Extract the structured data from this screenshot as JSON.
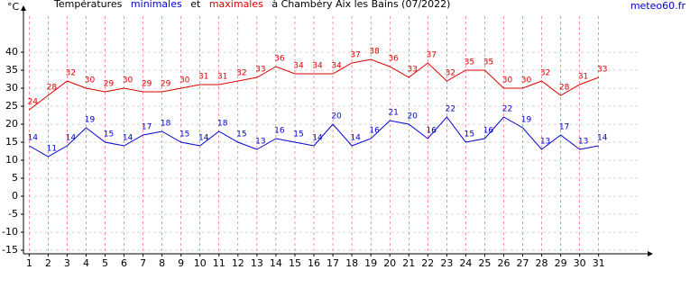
{
  "chart_data": {
    "type": "line",
    "title": {
      "prefix": "Températures",
      "joiner": "et",
      "suffix": "à Chambéry Aix les Bains (07/2022)"
    },
    "ylabel": "°C",
    "source": "meteo60.fr",
    "x": [
      1,
      2,
      3,
      4,
      5,
      6,
      7,
      8,
      9,
      10,
      11,
      12,
      13,
      14,
      15,
      16,
      17,
      18,
      19,
      20,
      21,
      22,
      23,
      24,
      25,
      26,
      27,
      28,
      29,
      30,
      31
    ],
    "series": [
      {
        "name": "minimales",
        "color": "#0000cc",
        "values": [
          14,
          11,
          14,
          19,
          15,
          14,
          17,
          18,
          15,
          14,
          18,
          15,
          13,
          16,
          15,
          14,
          20,
          14,
          16,
          21,
          20,
          16,
          22,
          15,
          16,
          22,
          19,
          13,
          17,
          13,
          14
        ]
      },
      {
        "name": "maximales",
        "color": "#dd0000",
        "values": [
          24,
          28,
          32,
          30,
          29,
          30,
          29,
          29,
          30,
          31,
          31,
          32,
          33,
          36,
          34,
          34,
          34,
          37,
          38,
          36,
          33,
          37,
          32,
          35,
          35,
          30,
          30,
          32,
          28,
          31,
          33
        ]
      }
    ],
    "xlim": [
      0.7,
      33.2
    ],
    "xticks": [
      1,
      2,
      3,
      4,
      5,
      6,
      7,
      8,
      9,
      10,
      11,
      12,
      13,
      14,
      15,
      16,
      17,
      18,
      19,
      20,
      21,
      22,
      23,
      24,
      25,
      26,
      27,
      28,
      29,
      30,
      31
    ],
    "ylim": [
      -16,
      50
    ],
    "yticks": [
      -15,
      -10,
      -5,
      0,
      5,
      10,
      15,
      20,
      25,
      30,
      35,
      40
    ],
    "grid": true
  }
}
